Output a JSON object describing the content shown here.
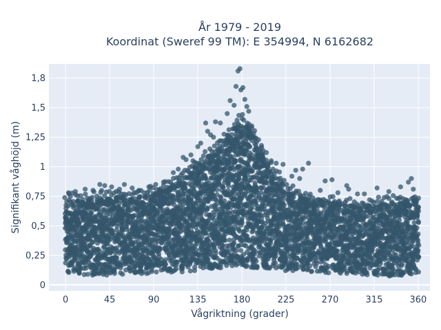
{
  "chart_data": {
    "type": "scatter",
    "title_lines": [
      "År 1979 - 2019",
      "Koordinat (Sweref 99 TM): E 354994, N 6162682"
    ],
    "xlabel": "Vågriktning (grader)",
    "ylabel": "Signifikant våghöjd (m)",
    "xlim": [
      -17,
      372
    ],
    "ylim": [
      -0.05,
      1.87
    ],
    "x_ticks": [
      0,
      45,
      90,
      135,
      180,
      225,
      270,
      315,
      360
    ],
    "x_tick_labels": [
      "0",
      "45",
      "90",
      "135",
      "180",
      "225",
      "270",
      "315",
      "360"
    ],
    "y_ticks": [
      0,
      0.25,
      0.5,
      0.75,
      1,
      1.25,
      1.5,
      1.75
    ],
    "y_tick_labels": [
      "0",
      "0,25",
      "0,5",
      "0,75",
      "1",
      "1,25",
      "1,5",
      "1,8"
    ],
    "grid": true,
    "legend": "none",
    "marker_color": "#34566b",
    "plot_background": "#e5ecf6",
    "density_envelope": {
      "direction_deg": [
        0,
        20,
        45,
        70,
        90,
        110,
        135,
        155,
        170,
        180,
        190,
        205,
        225,
        250,
        270,
        300,
        315,
        340,
        360
      ],
      "upper_m": [
        0.72,
        0.72,
        0.75,
        0.74,
        0.78,
        0.85,
        1.02,
        1.15,
        1.32,
        1.42,
        1.3,
        1.05,
        0.82,
        0.72,
        0.7,
        0.66,
        0.68,
        0.7,
        0.72
      ],
      "lower_m": [
        0.1,
        0.08,
        0.08,
        0.09,
        0.1,
        0.1,
        0.12,
        0.14,
        0.15,
        0.15,
        0.14,
        0.13,
        0.12,
        0.11,
        0.1,
        0.09,
        0.08,
        0.07,
        0.1
      ]
    },
    "outliers": [
      {
        "x": 178,
        "y": 1.83
      },
      {
        "x": 176,
        "y": 1.81
      },
      {
        "x": 181,
        "y": 1.67
      },
      {
        "x": 174,
        "y": 1.68
      },
      {
        "x": 179,
        "y": 1.65
      },
      {
        "x": 168,
        "y": 1.56
      },
      {
        "x": 183,
        "y": 1.57
      },
      {
        "x": 187,
        "y": 1.47
      },
      {
        "x": 190,
        "y": 1.33
      },
      {
        "x": 158,
        "y": 1.37
      },
      {
        "x": 145,
        "y": 1.3
      },
      {
        "x": 143,
        "y": 1.37
      },
      {
        "x": 162,
        "y": 1.22
      },
      {
        "x": 148,
        "y": 1.27
      },
      {
        "x": 151,
        "y": 1.25
      },
      {
        "x": 135,
        "y": 1.17
      },
      {
        "x": 120,
        "y": 1.08
      },
      {
        "x": 128,
        "y": 1.1
      },
      {
        "x": 123,
        "y": 1.06
      },
      {
        "x": 200,
        "y": 1.18
      },
      {
        "x": 205,
        "y": 1.12
      },
      {
        "x": 195,
        "y": 1.21
      },
      {
        "x": 210,
        "y": 1.05
      },
      {
        "x": 215,
        "y": 1.03
      },
      {
        "x": 222,
        "y": 1.02
      },
      {
        "x": 248,
        "y": 1.03
      },
      {
        "x": 235,
        "y": 0.97
      },
      {
        "x": 242,
        "y": 0.98
      },
      {
        "x": 265,
        "y": 0.88
      },
      {
        "x": 272,
        "y": 0.89
      },
      {
        "x": 231,
        "y": 0.92
      },
      {
        "x": 239,
        "y": 0.9
      },
      {
        "x": 287,
        "y": 0.84
      },
      {
        "x": 289,
        "y": 0.81
      },
      {
        "x": 318,
        "y": 0.82
      },
      {
        "x": 342,
        "y": 0.83
      },
      {
        "x": 350,
        "y": 0.87
      },
      {
        "x": 353,
        "y": 0.9
      },
      {
        "x": 355,
        "y": 0.81
      },
      {
        "x": 330,
        "y": 0.79
      },
      {
        "x": 298,
        "y": 0.77
      },
      {
        "x": 305,
        "y": 0.77
      },
      {
        "x": 260,
        "y": 0.8
      },
      {
        "x": 278,
        "y": 0.78
      },
      {
        "x": 100,
        "y": 0.87
      },
      {
        "x": 92,
        "y": 0.85
      },
      {
        "x": 85,
        "y": 0.83
      },
      {
        "x": 68,
        "y": 0.82
      },
      {
        "x": 55,
        "y": 0.81
      },
      {
        "x": 47,
        "y": 0.83
      },
      {
        "x": 40,
        "y": 0.84
      },
      {
        "x": 35,
        "y": 0.85
      },
      {
        "x": 28,
        "y": 0.8
      },
      {
        "x": 20,
        "y": 0.81
      },
      {
        "x": 10,
        "y": 0.79
      },
      {
        "x": 3,
        "y": 0.78
      },
      {
        "x": 60,
        "y": 0.85
      },
      {
        "x": 75,
        "y": 0.8
      },
      {
        "x": 110,
        "y": 0.95
      },
      {
        "x": 115,
        "y": 0.98
      },
      {
        "x": 130,
        "y": 1.05
      },
      {
        "x": 138,
        "y": 1.2
      },
      {
        "x": 153,
        "y": 1.38
      },
      {
        "x": 165,
        "y": 1.45
      },
      {
        "x": 172,
        "y": 1.52
      },
      {
        "x": 185,
        "y": 1.51
      },
      {
        "x": 192,
        "y": 1.28
      },
      {
        "x": 198,
        "y": 1.15
      }
    ]
  }
}
